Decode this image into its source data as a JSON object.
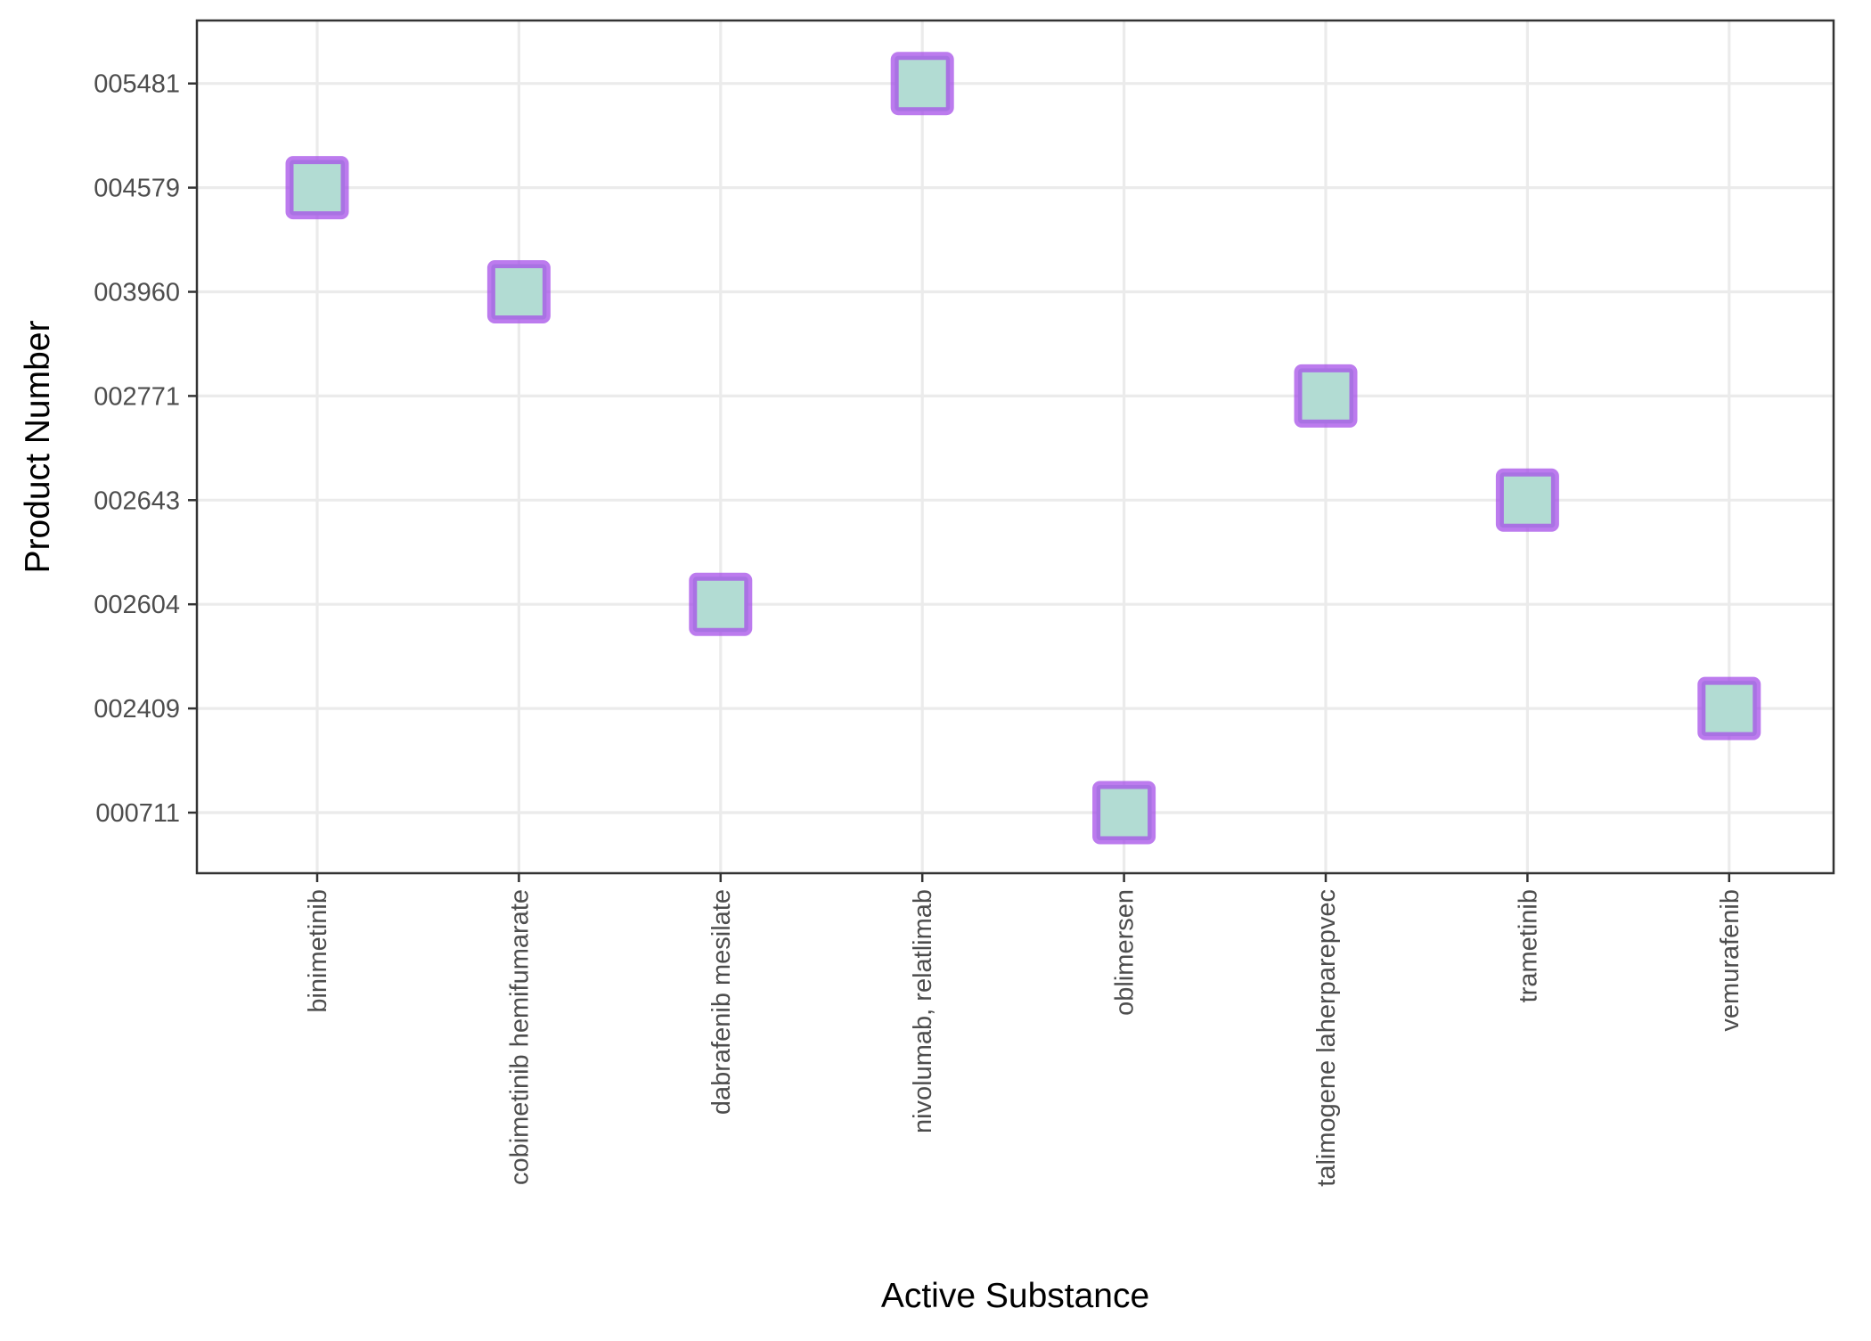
{
  "chart_data": {
    "type": "scatter",
    "title": "",
    "xlabel": "Active Substance",
    "ylabel": "Product Number",
    "x_axis_type": "categorical",
    "y_axis_type": "categorical",
    "categories_x": [
      "binimetinib",
      "cobimetinib hemifumarate",
      "dabrafenib mesilate",
      "nivolumab, relatlimab",
      "oblimersen",
      "talimogene laherparepvec",
      "trametinib",
      "vemurafenib"
    ],
    "categories_y": [
      "000711",
      "002409",
      "002604",
      "002643",
      "002771",
      "003960",
      "004579",
      "005481"
    ],
    "points": [
      {
        "x": "binimetinib",
        "y": "004579"
      },
      {
        "x": "cobimetinib hemifumarate",
        "y": "003960"
      },
      {
        "x": "dabrafenib mesilate",
        "y": "002604"
      },
      {
        "x": "nivolumab, relatlimab",
        "y": "005481"
      },
      {
        "x": "oblimersen",
        "y": "000711"
      },
      {
        "x": "talimogene laherparepvec",
        "y": "002771"
      },
      {
        "x": "trametinib",
        "y": "002643"
      },
      {
        "x": "vemurafenib",
        "y": "002409"
      }
    ],
    "marker": {
      "shape": "square",
      "fill_color": "#b2dcd3",
      "outline_color": "#a64fe8"
    },
    "grid": true,
    "legend": "none",
    "colors": {
      "grid": "#ebebeb",
      "panel_border": "#333333",
      "tick_label": "#4d4d4d",
      "axis_title": "#000000"
    }
  }
}
